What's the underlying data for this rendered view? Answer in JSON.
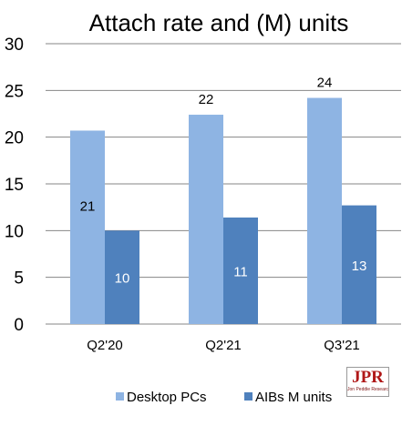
{
  "chart_data": {
    "type": "bar",
    "title": "Attach rate and (M) units",
    "categories": [
      "Q2'20",
      "Q2'21",
      "Q3'21"
    ],
    "series": [
      {
        "name": "Desktop PCs",
        "values": [
          20.7,
          22.4,
          24.2
        ],
        "labels": [
          "21",
          "22",
          "24"
        ],
        "color": "#8eb4e3",
        "label_color": "#000000",
        "label_position": "inside-middle-for-first-else-above"
      },
      {
        "name": "AIBs M units",
        "values": [
          10.0,
          11.4,
          12.7
        ],
        "labels": [
          "10",
          "11",
          "13"
        ],
        "color": "#4f81bd",
        "label_color": "#ffffff",
        "label_position": "inside-middle"
      }
    ],
    "ylim": [
      0,
      30
    ],
    "yticks": [
      "0",
      "5",
      "10",
      "15",
      "20",
      "25",
      "30"
    ],
    "grid": true,
    "legend": "bottom"
  },
  "logo": {
    "main": "JPR",
    "sub": "Jon Peddie Research"
  }
}
